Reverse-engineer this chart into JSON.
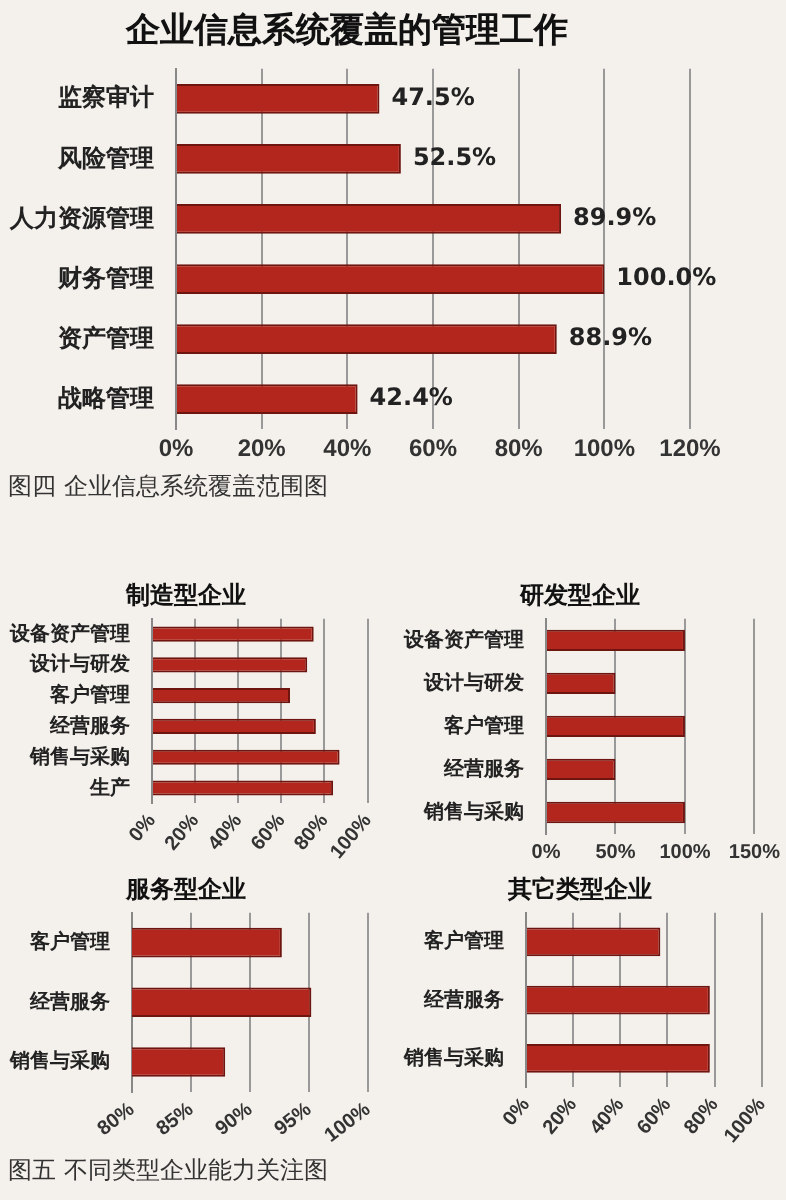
{
  "chart_data": [
    {
      "type": "bar",
      "orientation": "horizontal",
      "title": "企业信息系统覆盖的管理工作",
      "categories": [
        "监察审计",
        "风险管理",
        "人力资源管理",
        "财务管理",
        "资产管理",
        "战略管理"
      ],
      "values": [
        47.5,
        52.5,
        89.9,
        100.0,
        88.9,
        42.4
      ],
      "value_labels": [
        "47.5%",
        "52.5%",
        "89.9%",
        "100.0%",
        "88.9%",
        "42.4%"
      ],
      "color": "#b3261e",
      "xlim": [
        0,
        120
      ],
      "xticks": [
        {
          "value": 0,
          "label": "0%"
        },
        {
          "value": 20,
          "label": "20%"
        },
        {
          "value": 40,
          "label": "40%"
        },
        {
          "value": 60,
          "label": "60%"
        },
        {
          "value": 80,
          "label": "80%"
        },
        {
          "value": 100,
          "label": "100%"
        },
        {
          "value": 120,
          "label": "120%"
        }
      ],
      "grid": "x",
      "annotations": [
        "图四 企业信息系统覆盖范围图"
      ]
    },
    {
      "type": "bar",
      "orientation": "horizontal",
      "title": "制造型企业",
      "categories": [
        "设备资产管理",
        "设计与研发",
        "客户管理",
        "经营服务",
        "销售与采购",
        "生产"
      ],
      "values": [
        75,
        72,
        64,
        76,
        87,
        84
      ],
      "color": "#b3261e",
      "xlim": [
        0,
        100
      ],
      "xticks": [
        {
          "value": 0,
          "label": "0%"
        },
        {
          "value": 20,
          "label": "20%"
        },
        {
          "value": 40,
          "label": "40%"
        },
        {
          "value": 60,
          "label": "60%"
        },
        {
          "value": 80,
          "label": "80%"
        },
        {
          "value": 100,
          "label": "100%"
        }
      ],
      "grid": "x"
    },
    {
      "type": "bar",
      "orientation": "horizontal",
      "title": "研发型企业",
      "categories": [
        "设备资产管理",
        "设计与研发",
        "客户管理",
        "经营服务",
        "销售与采购"
      ],
      "values": [
        100,
        50,
        100,
        50,
        100
      ],
      "color": "#b3261e",
      "xlim": [
        0,
        150
      ],
      "xticks": [
        {
          "value": 0,
          "label": "0%"
        },
        {
          "value": 50,
          "label": "50%"
        },
        {
          "value": 100,
          "label": "100%"
        },
        {
          "value": 150,
          "label": "150%"
        }
      ],
      "grid": "x"
    },
    {
      "type": "bar",
      "orientation": "horizontal",
      "title": "服务型企业",
      "categories": [
        "客户管理",
        "经营服务",
        "销售与采购"
      ],
      "values": [
        92.7,
        95.2,
        87.9
      ],
      "color": "#b3261e",
      "xlim": [
        80,
        100
      ],
      "xticks": [
        {
          "value": 80,
          "label": "80%"
        },
        {
          "value": 85,
          "label": "85%"
        },
        {
          "value": 90,
          "label": "90%"
        },
        {
          "value": 95,
          "label": "95%"
        },
        {
          "value": 100,
          "label": "100%"
        }
      ],
      "grid": "x",
      "annotations": [
        "图五 不同类型企业能力关注图"
      ]
    },
    {
      "type": "bar",
      "orientation": "horizontal",
      "title": "其它类型企业",
      "categories": [
        "客户管理",
        "经营服务",
        "销售与采购"
      ],
      "values": [
        57,
        78,
        78
      ],
      "color": "#b3261e",
      "xlim": [
        0,
        100
      ],
      "xticks": [
        {
          "value": 0,
          "label": "0%"
        },
        {
          "value": 20,
          "label": "20%"
        },
        {
          "value": 40,
          "label": "40%"
        },
        {
          "value": 60,
          "label": "60%"
        },
        {
          "value": 80,
          "label": "80%"
        },
        {
          "value": 100,
          "label": "100%"
        }
      ],
      "grid": "x"
    }
  ]
}
